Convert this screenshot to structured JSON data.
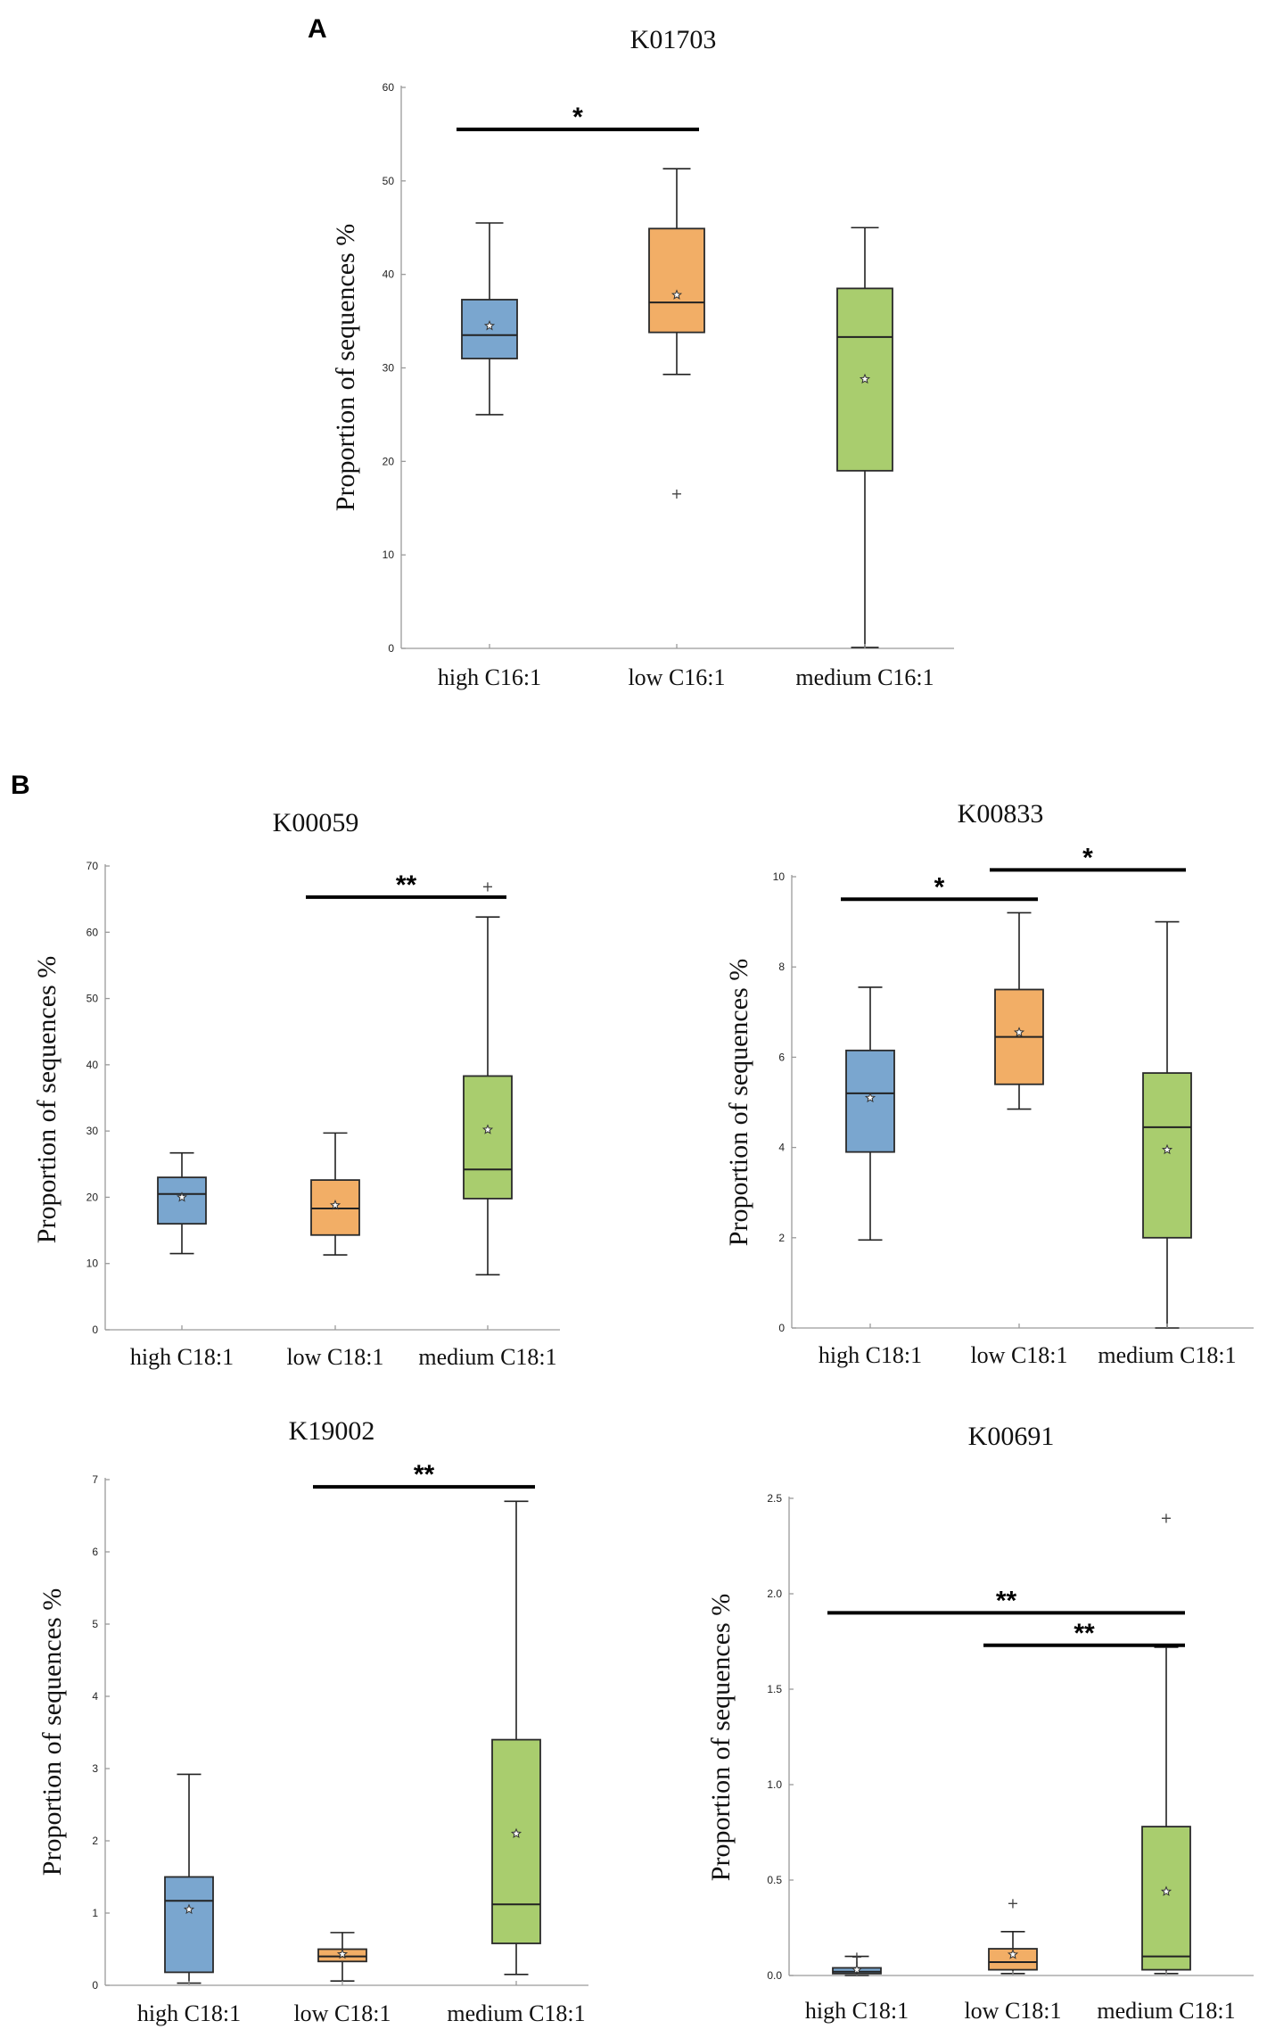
{
  "colors": {
    "blue": "#7aa6cf",
    "orange": "#f2ae66",
    "green": "#a9cd6e"
  },
  "panel_labels": [
    "A",
    "B"
  ],
  "y_axis_label": "Proportion of sequences %",
  "chart_data": [
    {
      "type": "box",
      "panel": "A",
      "title": "K01703",
      "ylabel": "Proportion of sequences %",
      "ylim": [
        0,
        60
      ],
      "yticks": [
        "0",
        "10",
        "20",
        "30",
        "40",
        "50",
        "60"
      ],
      "categories": [
        "high C16:1",
        "low C16:1",
        "medium C16:1"
      ],
      "boxes": [
        {
          "name": "high C16:1",
          "color": "blue",
          "min": 25,
          "q1": 31,
          "median": 33.5,
          "q3": 37.3,
          "max": 45.5,
          "mean": 34.5,
          "outliers": []
        },
        {
          "name": "low C16:1",
          "color": "orange",
          "min": 29.3,
          "q1": 33.8,
          "median": 37,
          "q3": 44.9,
          "max": 51.3,
          "mean": 37.8,
          "outliers": [
            16.6
          ]
        },
        {
          "name": "medium C16:1",
          "color": "green",
          "min": 0.1,
          "q1": 19,
          "median": 33.3,
          "q3": 38.5,
          "max": 45,
          "mean": 28.8,
          "outliers": []
        }
      ],
      "significance": [
        {
          "from": 0,
          "to": 1,
          "label": "*",
          "level": 55.5
        }
      ]
    },
    {
      "type": "box",
      "panel": "B",
      "title": "K00059",
      "ylabel": "Proportion of sequences %",
      "ylim": [
        0,
        70
      ],
      "yticks": [
        "0",
        "10",
        "20",
        "30",
        "40",
        "50",
        "60",
        "70"
      ],
      "categories": [
        "high C18:1",
        "low C18:1",
        "medium C18:1"
      ],
      "boxes": [
        {
          "name": "high C18:1",
          "color": "blue",
          "min": 11.5,
          "q1": 16,
          "median": 20.5,
          "q3": 23,
          "max": 26.7,
          "mean": 20,
          "outliers": []
        },
        {
          "name": "low C18:1",
          "color": "orange",
          "min": 11.3,
          "q1": 14.3,
          "median": 18.3,
          "q3": 22.6,
          "max": 29.7,
          "mean": 18.8,
          "outliers": []
        },
        {
          "name": "medium C18:1",
          "color": "green",
          "min": 8.3,
          "q1": 19.8,
          "median": 24.2,
          "q3": 38.3,
          "max": 62.3,
          "mean": 30.2,
          "outliers": [
            67
          ]
        }
      ],
      "significance": [
        {
          "from": 1,
          "to": 2,
          "label": "**",
          "level": 65.3
        }
      ]
    },
    {
      "type": "box",
      "panel": "B",
      "title": "K00833",
      "ylabel": "Proportion of sequences %",
      "ylim": [
        0,
        10
      ],
      "yticks": [
        "0",
        "2",
        "4",
        "6",
        "8",
        "10"
      ],
      "categories": [
        "high C18:1",
        "low C18:1",
        "medium C18:1"
      ],
      "boxes": [
        {
          "name": "high C18:1",
          "color": "blue",
          "min": 1.95,
          "q1": 3.9,
          "median": 5.2,
          "q3": 6.15,
          "max": 7.55,
          "mean": 5.1,
          "outliers": []
        },
        {
          "name": "low C18:1",
          "color": "orange",
          "min": 4.85,
          "q1": 5.4,
          "median": 6.45,
          "q3": 7.5,
          "max": 9.2,
          "mean": 6.55,
          "outliers": []
        },
        {
          "name": "medium C18:1",
          "color": "green",
          "min": 0,
          "q1": 2,
          "median": 4.45,
          "q3": 5.65,
          "max": 9.0,
          "mean": 3.95,
          "outliers": []
        }
      ],
      "significance": [
        {
          "from": 0,
          "to": 1,
          "label": "*",
          "level": 9.5
        },
        {
          "from": 1,
          "to": 2,
          "label": "*",
          "level": 10.15
        }
      ]
    },
    {
      "type": "box",
      "panel": "B",
      "title": "K19002",
      "ylabel": "Proportion of sequences %",
      "ylim": [
        0,
        7
      ],
      "yticks": [
        "0",
        "1",
        "2",
        "3",
        "4",
        "5",
        "6",
        "7"
      ],
      "categories": [
        "high C18:1",
        "low C18:1",
        "medium C18:1"
      ],
      "boxes": [
        {
          "name": "high C18:1",
          "color": "blue",
          "min": 0.03,
          "q1": 0.18,
          "median": 1.17,
          "q3": 1.5,
          "max": 2.92,
          "mean": 1.05,
          "outliers": []
        },
        {
          "name": "low C18:1",
          "color": "orange",
          "min": 0.06,
          "q1": 0.33,
          "median": 0.4,
          "q3": 0.5,
          "max": 0.73,
          "mean": 0.43,
          "outliers": []
        },
        {
          "name": "medium C18:1",
          "color": "green",
          "min": 0.15,
          "q1": 0.58,
          "median": 1.12,
          "q3": 3.4,
          "max": 6.7,
          "mean": 2.1,
          "outliers": []
        }
      ],
      "significance": [
        {
          "from": 1,
          "to": 2,
          "label": "**",
          "level": 6.9
        }
      ]
    },
    {
      "type": "box",
      "panel": "B",
      "title": "K00691",
      "ylabel": "Proportion of sequences %",
      "ylim": [
        0,
        2.5
      ],
      "yticks": [
        "0.0",
        "0.5",
        "1.0",
        "1.5",
        "2.0",
        "2.5"
      ],
      "categories": [
        "high C18:1",
        "low C18:1",
        "medium C18:1"
      ],
      "boxes": [
        {
          "name": "high C18:1",
          "color": "blue",
          "min": 0.0,
          "q1": 0.01,
          "median": 0.02,
          "q3": 0.04,
          "max": 0.1,
          "mean": 0.03,
          "outliers": [
            0.1
          ]
        },
        {
          "name": "low C18:1",
          "color": "orange",
          "min": 0.01,
          "q1": 0.03,
          "median": 0.07,
          "q3": 0.14,
          "max": 0.23,
          "mean": 0.11,
          "outliers": [
            0.38
          ]
        },
        {
          "name": "medium C18:1",
          "color": "green",
          "min": 0.01,
          "q1": 0.03,
          "median": 0.1,
          "q3": 0.78,
          "max": 1.72,
          "mean": 0.44,
          "outliers": [
            2.4
          ]
        }
      ],
      "significance": [
        {
          "from": 0,
          "to": 2,
          "label": "**",
          "level": 1.9
        },
        {
          "from": 1,
          "to": 2,
          "label": "**",
          "level": 1.73
        }
      ]
    }
  ]
}
